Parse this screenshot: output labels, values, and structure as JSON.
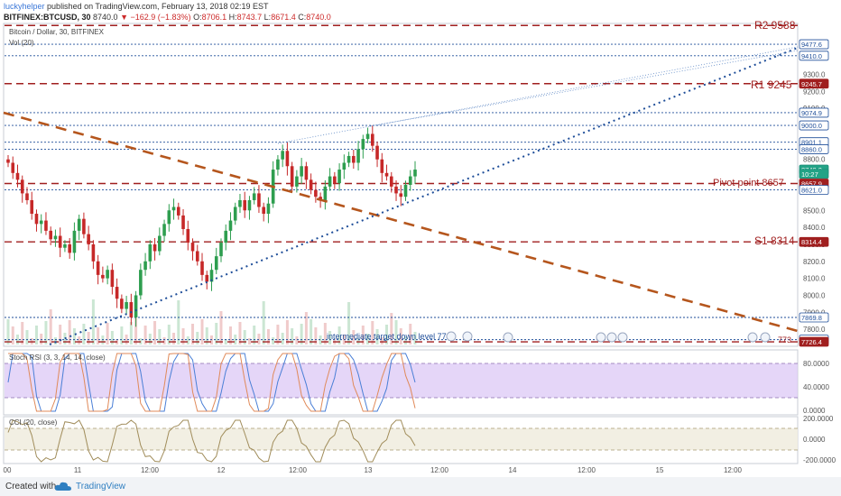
{
  "header": {
    "user": "luckyhelper",
    "published_text": "published on TradingView.com, February 13, 2018 02:19 EST",
    "symbol": "BITFINEX:BTCUSD, 30",
    "last": "8740.0",
    "change": "▼ −162.9 (−1.83%)",
    "o_label": "O:",
    "o_value": "8706.1",
    "h_label": "H:",
    "h_value": "8743.7",
    "l_label": "L:",
    "l_value": "8671.4",
    "c_label": "C:",
    "c_value": "8740.0"
  },
  "pane_labels": {
    "main_title": "Bitcoin / Dollar, 30, BITFINEX",
    "volume": "Vol (20)",
    "stoch": "Stoch RSI (3, 3, 14, 14, close)",
    "cci": "CCI (20, close)"
  },
  "annotations": {
    "r2": "R2 9588",
    "r1": "R1 9245",
    "pivot": "Pivot point 8657",
    "s1": "S1 8314",
    "intermediate": "intermediate target down level 7740",
    "s2_partial": "773"
  },
  "price_axis": {
    "ticks": [
      "9300.0",
      "9200.0",
      "9100.0",
      "8800.0",
      "8500.0",
      "8400.0",
      "8300.0",
      "8200.0",
      "8100.0",
      "8000.0",
      "7900.0",
      "7800.0"
    ],
    "price_labels": [
      {
        "text": "9477.6",
        "type": "blue"
      },
      {
        "text": "9410.0",
        "type": "blue"
      },
      {
        "text": "9245.7",
        "type": "red"
      },
      {
        "text": "9074.9",
        "type": "blue"
      },
      {
        "text": "9000.0",
        "type": "blue"
      },
      {
        "text": "8901.1",
        "type": "blue"
      },
      {
        "text": "8860.0",
        "type": "blue"
      },
      {
        "text": "8740.0",
        "type": "teal"
      },
      {
        "text": "10:27",
        "type": "teal"
      },
      {
        "text": "8657.9",
        "type": "red"
      },
      {
        "text": "8621.0",
        "type": "blue"
      },
      {
        "text": "8314.4",
        "type": "red"
      },
      {
        "text": "7869.8",
        "type": "blue"
      },
      {
        "text": "7739.1",
        "type": "blue"
      },
      {
        "text": "7726.4",
        "type": "red"
      }
    ]
  },
  "stoch_axis": [
    "80.0000",
    "40.0000",
    "0.0000"
  ],
  "cci_axis": [
    "200.0000",
    "0.0000",
    "-200.0000"
  ],
  "time_axis": [
    "00",
    "11",
    "12:00",
    "12",
    "12:00",
    "13",
    "12:00",
    "14",
    "12:00",
    "15",
    "12:00"
  ],
  "footer": {
    "created": "Created with",
    "brand": "TradingView"
  },
  "colors": {
    "red_level": "#a01f1f",
    "blue_level": "#1f4e99",
    "trend_orange": "#b5561d",
    "up": "#2e9e4f",
    "down": "#c62828",
    "stoch_fill": "#dcc8f5"
  },
  "chart_data": {
    "type": "candlestick",
    "title": "Bitcoin / Dollar, 30, BITFINEX",
    "y_range": [
      7700,
      9600
    ],
    "x_ticks": [
      "00",
      "11",
      "12:00",
      "12",
      "12:00",
      "13",
      "12:00",
      "14",
      "12:00",
      "15",
      "12:00"
    ],
    "horizontal_levels": [
      {
        "label": "R2 9588",
        "value": 9588,
        "style": "red-dashed"
      },
      {
        "label": "R1 9245",
        "value": 9245.7,
        "style": "red-dashed"
      },
      {
        "label": "Pivot point 8657",
        "value": 8657.9,
        "style": "red-dashed"
      },
      {
        "label": "S1 8314",
        "value": 8314.4,
        "style": "red-dashed"
      },
      {
        "label": "",
        "value": 7726.4,
        "style": "red-dashed"
      },
      {
        "label": "",
        "value": 9477.6,
        "style": "blue-dotted"
      },
      {
        "label": "",
        "value": 9410.0,
        "style": "blue-dotted"
      },
      {
        "label": "",
        "value": 9074.9,
        "style": "blue-dotted"
      },
      {
        "label": "",
        "value": 9000.0,
        "style": "blue-dotted"
      },
      {
        "label": "",
        "value": 8901.1,
        "style": "blue-dotted"
      },
      {
        "label": "",
        "value": 8860.0,
        "style": "blue-dotted"
      },
      {
        "label": "",
        "value": 8621.0,
        "style": "blue-dotted"
      },
      {
        "label": "",
        "value": 7869.8,
        "style": "blue-dotted"
      },
      {
        "label": "intermediate target down level 7740",
        "value": 7739.1,
        "style": "blue-dotted"
      }
    ],
    "series": [
      {
        "name": "close",
        "values": [
          8780,
          8720,
          8680,
          8600,
          8560,
          8480,
          8420,
          8440,
          8380,
          8330,
          8350,
          8280,
          8300,
          8250,
          8380,
          8450,
          8360,
          8300,
          8200,
          8120,
          8100,
          8150,
          8050,
          7980,
          7920,
          7960,
          7870,
          8000,
          8150,
          8200,
          8300,
          8260,
          8350,
          8420,
          8500,
          8520,
          8470,
          8390,
          8310,
          8260,
          8200,
          8120,
          8080,
          8150,
          8230,
          8310,
          8380,
          8440,
          8520,
          8560,
          8500,
          8560,
          8600,
          8520,
          8480,
          8540,
          8740,
          8800,
          8850,
          8760,
          8640,
          8700,
          8760,
          8680,
          8620,
          8580,
          8560,
          8640,
          8700,
          8660,
          8740,
          8780,
          8820,
          8780,
          8860,
          8920,
          8950,
          8880,
          8800,
          8720,
          8700,
          8640,
          8600,
          8580,
          8650,
          8700,
          8740
        ]
      }
    ]
  }
}
